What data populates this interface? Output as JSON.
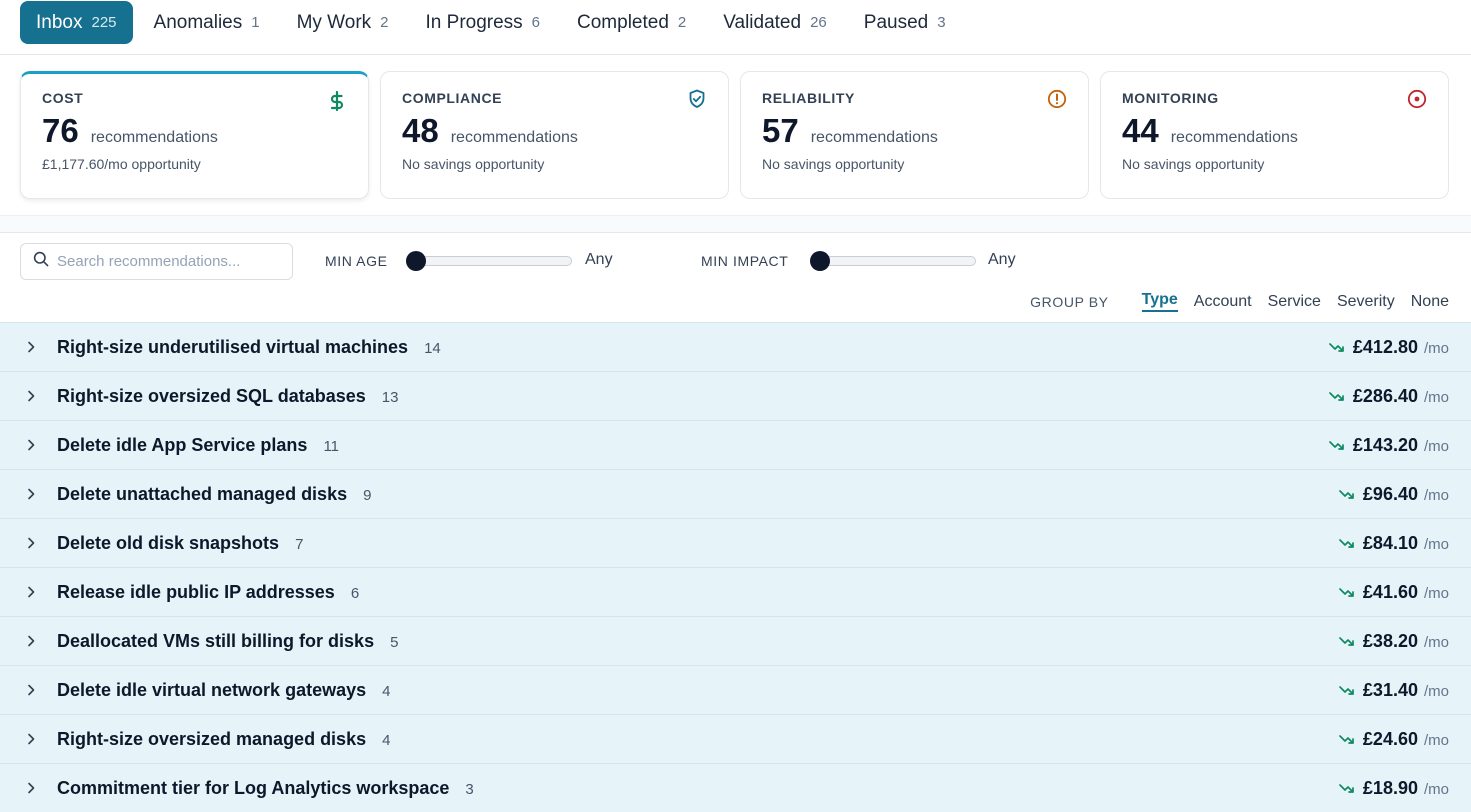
{
  "tabs": [
    {
      "label": "Inbox",
      "count": "225"
    },
    {
      "label": "Anomalies",
      "count": "1"
    },
    {
      "label": "My Work",
      "count": "2"
    },
    {
      "label": "In Progress",
      "count": "6"
    },
    {
      "label": "Completed",
      "count": "2"
    },
    {
      "label": "Validated",
      "count": "26"
    },
    {
      "label": "Paused",
      "count": "3"
    }
  ],
  "cards": [
    {
      "title": "COST",
      "count": "76",
      "unit": "recommendations",
      "sub": "£1,177.60/mo opportunity",
      "icon": "dollar-icon",
      "color": "#0f8a5f"
    },
    {
      "title": "COMPLIANCE",
      "count": "48",
      "unit": "recommendations",
      "sub": "No savings opportunity",
      "icon": "shield-check-icon",
      "color": "#16708f"
    },
    {
      "title": "RELIABILITY",
      "count": "57",
      "unit": "recommendations",
      "sub": "No savings opportunity",
      "icon": "alert-circle-icon",
      "color": "#c2620a"
    },
    {
      "title": "MONITORING",
      "count": "44",
      "unit": "recommendations",
      "sub": "No savings opportunity",
      "icon": "target-icon",
      "color": "#c0262d"
    }
  ],
  "search": {
    "placeholder": "Search recommendations..."
  },
  "filters": {
    "min_age": {
      "label": "MIN AGE",
      "value": "Any"
    },
    "min_impact": {
      "label": "MIN IMPACT",
      "value": "Any"
    }
  },
  "groupby": {
    "label": "GROUP BY",
    "options": [
      "Type",
      "Account",
      "Service",
      "Severity",
      "None"
    ],
    "selected": "Type"
  },
  "rows": [
    {
      "title": "Right-size underutilised virtual machines",
      "count": "14",
      "amount": "£412.80",
      "per": "/mo"
    },
    {
      "title": "Right-size oversized SQL databases",
      "count": "13",
      "amount": "£286.40",
      "per": "/mo"
    },
    {
      "title": "Delete idle App Service plans",
      "count": "11",
      "amount": "£143.20",
      "per": "/mo"
    },
    {
      "title": "Delete unattached managed disks",
      "count": "9",
      "amount": "£96.40",
      "per": "/mo"
    },
    {
      "title": "Delete old disk snapshots",
      "count": "7",
      "amount": "£84.10",
      "per": "/mo"
    },
    {
      "title": "Release idle public IP addresses",
      "count": "6",
      "amount": "£41.60",
      "per": "/mo"
    },
    {
      "title": "Deallocated VMs still billing for disks",
      "count": "5",
      "amount": "£38.20",
      "per": "/mo"
    },
    {
      "title": "Delete idle virtual network gateways",
      "count": "4",
      "amount": "£31.40",
      "per": "/mo"
    },
    {
      "title": "Right-size oversized managed disks",
      "count": "4",
      "amount": "£24.60",
      "per": "/mo"
    },
    {
      "title": "Commitment tier for Log Analytics workspace",
      "count": "3",
      "amount": "£18.90",
      "per": "/mo"
    }
  ],
  "colors": {
    "accent": "#16708f",
    "trend": "#0f8a5f",
    "row_bg": "#e6f4f9"
  }
}
